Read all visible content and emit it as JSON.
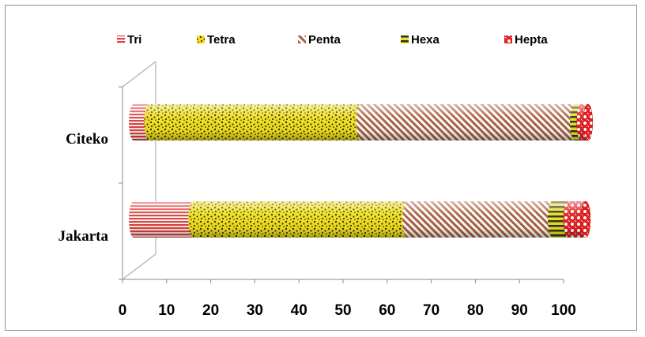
{
  "chart_data": {
    "type": "bar",
    "orientation": "horizontal",
    "stacked": true,
    "title": "",
    "xlabel": "",
    "ylabel": "",
    "xlim": [
      0,
      100
    ],
    "ticks": [
      "0",
      "10",
      "20",
      "30",
      "40",
      "50",
      "60",
      "70",
      "80",
      "90",
      "100"
    ],
    "categories": [
      "Citeko",
      "Jakarta"
    ],
    "series": [
      {
        "name": "Tri",
        "values": [
          3.5,
          13.5
        ],
        "color": "#e0403c"
      },
      {
        "name": "Tetra",
        "values": [
          48,
          48.5
        ],
        "color": "#e8dc1e"
      },
      {
        "name": "Penta",
        "values": [
          48.5,
          33
        ],
        "color": "#b9785a"
      },
      {
        "name": "Hexa",
        "values": [
          1.5,
          3.5
        ],
        "color": "#c8c818"
      },
      {
        "name": "Hepta",
        "values": [
          1.5,
          4
        ],
        "color": "#e02020"
      }
    ],
    "legend_position": "top",
    "grid": false
  }
}
